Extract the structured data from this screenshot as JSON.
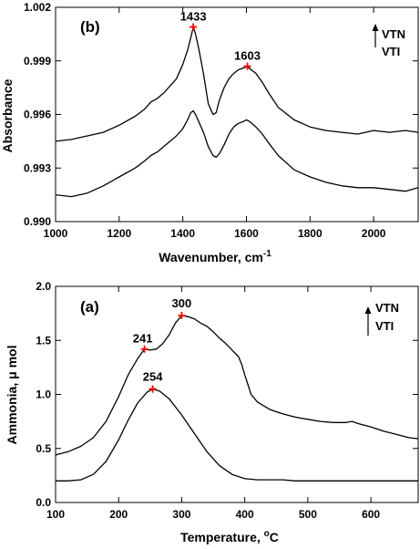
{
  "chart_data": [
    {
      "type": "line",
      "panel_label": "(b)",
      "xlabel": "Wavenumber, cm",
      "xlabel_sup": "-1",
      "ylabel": "Absorbance",
      "xlim": [
        1000,
        2140
      ],
      "ylim": [
        0.99,
        1.002
      ],
      "xticks": [
        1000,
        1200,
        1400,
        1600,
        1800,
        2000
      ],
      "yticks": [
        0.99,
        0.993,
        0.996,
        0.999,
        1.002
      ],
      "ytick_labels": [
        "0.990",
        "0.993",
        "0.996",
        "0.999",
        "1.002"
      ],
      "legend": [
        "VTN",
        "VTI"
      ],
      "series": [
        {
          "name": "VTN",
          "x": [
            1000,
            1050,
            1100,
            1150,
            1200,
            1250,
            1280,
            1300,
            1320,
            1340,
            1360,
            1380,
            1400,
            1415,
            1425,
            1433,
            1440,
            1450,
            1465,
            1480,
            1495,
            1505,
            1515,
            1530,
            1545,
            1560,
            1575,
            1590,
            1603,
            1615,
            1630,
            1650,
            1670,
            1700,
            1750,
            1800,
            1850,
            1900,
            1950,
            2000,
            2050,
            2100,
            2140
          ],
          "y": [
            0.9945,
            0.9946,
            0.9948,
            0.995,
            0.9954,
            0.9959,
            0.9963,
            0.9967,
            0.9969,
            0.9972,
            0.9976,
            0.998,
            0.9988,
            0.9996,
            1.0003,
            1.0009,
            1.0005,
            0.9997,
            0.9983,
            0.9966,
            0.996,
            0.9961,
            0.9968,
            0.9975,
            0.998,
            0.9983,
            0.9985,
            0.9986,
            0.9987,
            0.9985,
            0.9983,
            0.9978,
            0.9972,
            0.9964,
            0.9957,
            0.9953,
            0.9951,
            0.995,
            0.9949,
            0.9951,
            0.995,
            0.9951,
            0.995
          ]
        },
        {
          "name": "VTI",
          "x": [
            1000,
            1050,
            1100,
            1150,
            1200,
            1250,
            1280,
            1300,
            1320,
            1340,
            1360,
            1380,
            1400,
            1415,
            1425,
            1433,
            1440,
            1450,
            1465,
            1480,
            1495,
            1505,
            1515,
            1530,
            1545,
            1560,
            1575,
            1590,
            1600,
            1610,
            1630,
            1650,
            1670,
            1700,
            1750,
            1800,
            1850,
            1900,
            1950,
            2000,
            2050,
            2100,
            2140
          ],
          "y": [
            0.9915,
            0.9914,
            0.9916,
            0.992,
            0.9925,
            0.993,
            0.9934,
            0.9937,
            0.9939,
            0.9942,
            0.9945,
            0.9948,
            0.9952,
            0.9957,
            0.9961,
            0.9962,
            0.996,
            0.9956,
            0.995,
            0.9942,
            0.9937,
            0.9936,
            0.9938,
            0.9943,
            0.9949,
            0.9953,
            0.9955,
            0.9956,
            0.9957,
            0.9956,
            0.9953,
            0.9949,
            0.9944,
            0.9937,
            0.9929,
            0.9925,
            0.9922,
            0.992,
            0.9919,
            0.9919,
            0.9918,
            0.9917,
            0.9919
          ]
        }
      ],
      "peaks": [
        {
          "label": "1433",
          "x": 1433,
          "y": 1.0009
        },
        {
          "label": "1603",
          "x": 1603,
          "y": 0.9987
        }
      ]
    },
    {
      "type": "line",
      "panel_label": "(a)",
      "xlabel": "Temperature, ",
      "xlabel_sup": "o",
      "xlabel_unit": "C",
      "ylabel": "Ammonia, μ mol",
      "xlim": [
        100,
        675
      ],
      "ylim": [
        0.0,
        2.0
      ],
      "xticks": [
        100,
        200,
        300,
        400,
        500,
        600
      ],
      "yticks": [
        0.0,
        0.5,
        1.0,
        1.5,
        2.0
      ],
      "ytick_labels": [
        "0.0",
        "0.5",
        "1.0",
        "1.5",
        "2.0"
      ],
      "legend": [
        "VTN",
        "VTI"
      ],
      "series": [
        {
          "name": "VTN",
          "x": [
            100,
            120,
            140,
            160,
            180,
            200,
            215,
            230,
            241,
            250,
            260,
            270,
            280,
            290,
            300,
            310,
            320,
            330,
            340,
            350,
            360,
            370,
            380,
            390,
            395,
            400,
            410,
            420,
            440,
            460,
            480,
            500,
            520,
            540,
            560,
            570,
            580,
            600,
            620,
            640,
            660,
            675
          ],
          "y": [
            0.44,
            0.47,
            0.52,
            0.6,
            0.75,
            0.98,
            1.18,
            1.33,
            1.42,
            1.41,
            1.42,
            1.47,
            1.55,
            1.66,
            1.73,
            1.72,
            1.7,
            1.66,
            1.63,
            1.58,
            1.52,
            1.47,
            1.41,
            1.35,
            1.28,
            1.18,
            1.0,
            0.93,
            0.86,
            0.82,
            0.79,
            0.77,
            0.75,
            0.74,
            0.74,
            0.75,
            0.73,
            0.7,
            0.66,
            0.63,
            0.6,
            0.59
          ]
        },
        {
          "name": "VTI",
          "x": [
            100,
            120,
            140,
            160,
            180,
            200,
            215,
            230,
            245,
            254,
            265,
            280,
            300,
            320,
            340,
            360,
            380,
            400,
            420,
            430,
            440,
            460,
            480,
            500,
            520,
            540,
            560,
            580,
            600,
            620,
            640,
            660,
            675
          ],
          "y": [
            0.2,
            0.2,
            0.21,
            0.26,
            0.38,
            0.58,
            0.76,
            0.92,
            1.02,
            1.05,
            1.03,
            0.96,
            0.81,
            0.64,
            0.47,
            0.34,
            0.26,
            0.22,
            0.21,
            0.21,
            0.21,
            0.21,
            0.2,
            0.2,
            0.2,
            0.2,
            0.2,
            0.2,
            0.2,
            0.2,
            0.2,
            0.2,
            0.2
          ]
        }
      ],
      "peaks": [
        {
          "label": "241",
          "x": 241,
          "y": 1.42
        },
        {
          "label": "300",
          "x": 300,
          "y": 1.73
        },
        {
          "label": "254",
          "x": 254,
          "y": 1.05
        }
      ]
    }
  ],
  "colors": {
    "line": "#000000",
    "peak_marker": "#ff0000"
  }
}
